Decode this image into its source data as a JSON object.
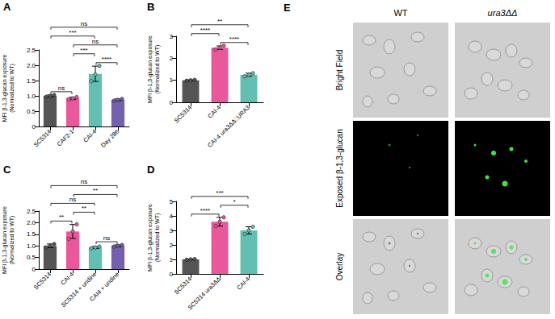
{
  "chart_data": [
    {
      "type": "bar",
      "title": "A",
      "ylabel": "MFI β-1,3-glucan exposure\n(Normalized to WT)",
      "categories": [
        "SC5314",
        "CAF2-1",
        "CAI-4",
        "Day 286"
      ],
      "values": [
        1.0,
        0.92,
        1.72,
        0.87
      ],
      "errors": [
        0.03,
        0.04,
        0.25,
        0.03
      ],
      "replicates": [
        [
          0.97,
          1.0,
          1.03
        ],
        [
          0.89,
          0.92,
          0.96
        ],
        [
          1.48,
          1.7,
          1.98
        ],
        [
          0.84,
          0.87,
          0.9
        ]
      ],
      "colors": [
        "#555555",
        "#e8589b",
        "#63bfb1",
        "#7460ad"
      ],
      "ylim": [
        0,
        2.5
      ],
      "yticks": [
        0,
        0.5,
        {
          "value": 1,
          "label": "1.0"
        },
        1.5,
        {
          "value": 2,
          "label": "2.0"
        },
        2.5
      ],
      "significance": [
        {
          "from": "SC5314",
          "to": "Day 286",
          "label": "ns"
        },
        {
          "from": "CAF2-1",
          "to": "Day 286",
          "label": "ns"
        },
        {
          "from": "SC5314",
          "to": "CAI-4",
          "label": "***"
        },
        {
          "from": "CAI-4",
          "to": "Day 286",
          "label": "****"
        },
        {
          "from": "CAF2-1",
          "to": "CAI-4",
          "label": "***"
        },
        {
          "from": "SC5314",
          "to": "CAF2-1",
          "label": "ns"
        }
      ],
      "grid": false
    },
    {
      "type": "bar",
      "title": "B",
      "ylabel": "MFI β-1,3-glucan exposure\n(Normalized to WT)",
      "categories": [
        "SC5314",
        "CAI-4",
        "CAI-4 ura3ΔΔ::URA3"
      ],
      "values": [
        1.0,
        2.48,
        1.25
      ],
      "errors": [
        0.02,
        0.08,
        0.07
      ],
      "replicates": [
        [
          0.98,
          1.0,
          1.02
        ],
        [
          2.4,
          2.48,
          2.57
        ],
        [
          1.18,
          1.25,
          1.32
        ]
      ],
      "colors": [
        "#555555",
        "#e8589b",
        "#63bfb1"
      ],
      "ylim": [
        0,
        3
      ],
      "yticks": [
        0,
        1,
        2,
        3
      ],
      "significance": [
        {
          "from": "SC5314",
          "to": "CAI-4 ura3ΔΔ::URA3",
          "label": "**"
        },
        {
          "from": "CAI-4",
          "to": "CAI-4 ura3ΔΔ::URA3",
          "label": "****"
        },
        {
          "from": "SC5314",
          "to": "CAI-4",
          "label": "****"
        }
      ],
      "grid": false
    },
    {
      "type": "bar",
      "title": "C",
      "ylabel": "MFI β-1,3-glucan exposure\n(Normalized to WT)",
      "categories": [
        "SC5314",
        "CAI-4",
        "SC5314 + uridine",
        "CAI4 + uridine"
      ],
      "values": [
        1.0,
        1.62,
        0.93,
        1.0
      ],
      "errors": [
        0.08,
        0.3,
        0.04,
        0.04
      ],
      "replicates": [
        [
          0.93,
          1.0,
          1.08
        ],
        [
          1.3,
          1.62,
          1.93
        ],
        [
          0.9,
          0.93,
          0.97
        ],
        [
          0.97,
          1.0,
          1.04
        ]
      ],
      "colors": [
        "#555555",
        "#e8589b",
        "#63bfb1",
        "#7460ad"
      ],
      "ylim": [
        0,
        2.5
      ],
      "yticks": [
        0,
        0.5,
        {
          "value": 1,
          "label": "1.0"
        },
        1.5,
        {
          "value": 2,
          "label": "2.0"
        },
        2.5
      ],
      "significance": [
        {
          "from": "SC5314",
          "to": "CAI4 + uridine",
          "label": "ns"
        },
        {
          "from": "SC5314",
          "to": "SC5314 + uridine",
          "label": "ns"
        },
        {
          "from": "CAI-4",
          "to": "CAI4 + uridine",
          "label": "**"
        },
        {
          "from": "SC5314",
          "to": "CAI-4",
          "label": "**"
        },
        {
          "from": "CAI-4",
          "to": "SC5314 + uridine",
          "label": "**"
        },
        {
          "from": "SC5314 + uridine",
          "to": "CAI4 + uridine",
          "label": "ns"
        }
      ],
      "grid": false
    },
    {
      "type": "bar",
      "title": "D",
      "ylabel": "MFI β-1,3-glucan exposure\n(Normalized to WT)",
      "categories": [
        "SC5314",
        "SC5314 ura3ΔΔ",
        "CAI-4"
      ],
      "values": [
        1.0,
        3.6,
        3.0
      ],
      "errors": [
        0.03,
        0.3,
        0.25
      ],
      "replicates": [
        [
          0.98,
          1.0,
          1.02
        ],
        [
          3.3,
          3.6,
          3.9
        ],
        [
          2.75,
          3.0,
          3.25
        ]
      ],
      "colors": [
        "#555555",
        "#e8589b",
        "#63bfb1"
      ],
      "ylim": [
        0,
        5
      ],
      "yticks": [
        0,
        1,
        2,
        3,
        4,
        5
      ],
      "significance": [
        {
          "from": "SC5314",
          "to": "CAI-4",
          "label": "***"
        },
        {
          "from": "SC5314",
          "to": "SC5314 ura3ΔΔ",
          "label": "****"
        },
        {
          "from": "SC5314 ura3ΔΔ",
          "to": "CAI-4",
          "label": "*"
        }
      ],
      "grid": false
    }
  ],
  "image_panel": {
    "title": "E",
    "columns": [
      "WT",
      "ura3ΔΔ"
    ],
    "rows": [
      "Bright Field",
      "Exposed β-1,3-glucan",
      "Overlay"
    ]
  }
}
